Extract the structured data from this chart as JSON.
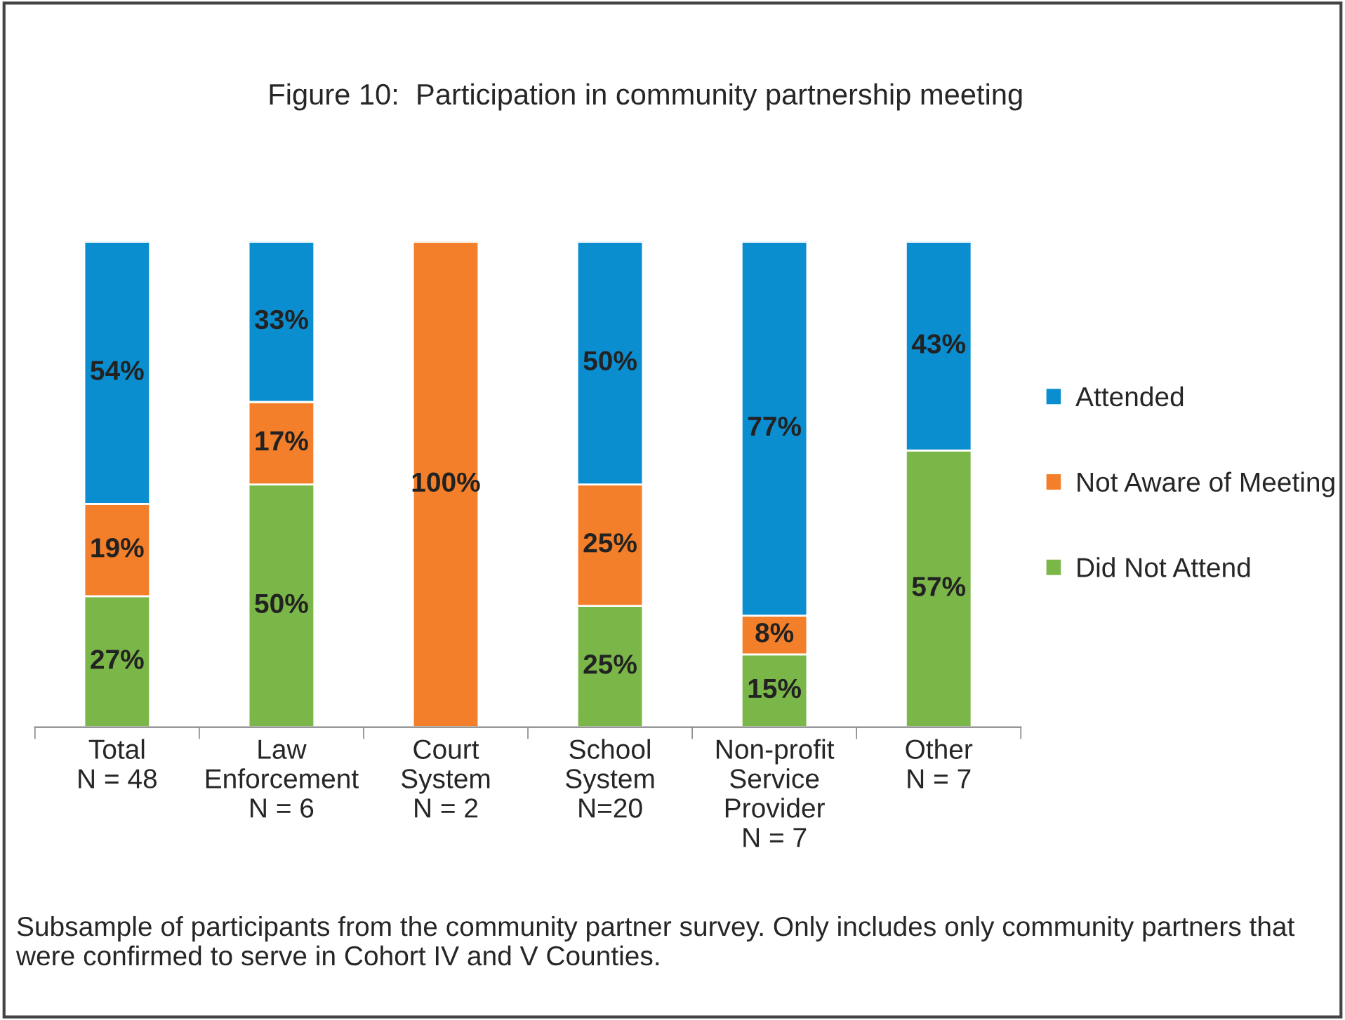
{
  "chart_data": {
    "type": "bar",
    "title": "Figure 10:  Participation in community partnership meeting",
    "categories": [
      "Total\nN = 48",
      "Law\nEnforcement\nN = 6",
      "Court\nSystem\nN = 2",
      "School\nSystem\nN=20",
      "Non-profit\nService\nProvider\nN = 7",
      "Other\nN = 7"
    ],
    "stacked": true,
    "ylim": [
      0,
      100
    ],
    "legend": "right",
    "series": [
      {
        "name": "Did Not Attend",
        "color": "#7ab648",
        "values": [
          27,
          50,
          null,
          25,
          15,
          57
        ],
        "value_labels": [
          "27%",
          "50%",
          null,
          "25%",
          "15%",
          "57%"
        ]
      },
      {
        "name": "Not Aware of Meeting",
        "color": "#f47f2a",
        "values": [
          19,
          17,
          100,
          25,
          8,
          null
        ],
        "value_labels": [
          "19%",
          "17%",
          "100%",
          "25%",
          "8%",
          null
        ]
      },
      {
        "name": "Attended",
        "color": "#0b8ed0",
        "values": [
          54,
          33,
          null,
          50,
          77,
          43
        ],
        "value_labels": [
          "54%",
          "33%",
          null,
          "50%",
          "77%",
          "43%"
        ]
      }
    ],
    "annotations": [
      "Subsample of participants from the community partner survey. Only includes only community partners that were confirmed to serve in Cohort IV and V Counties."
    ]
  }
}
